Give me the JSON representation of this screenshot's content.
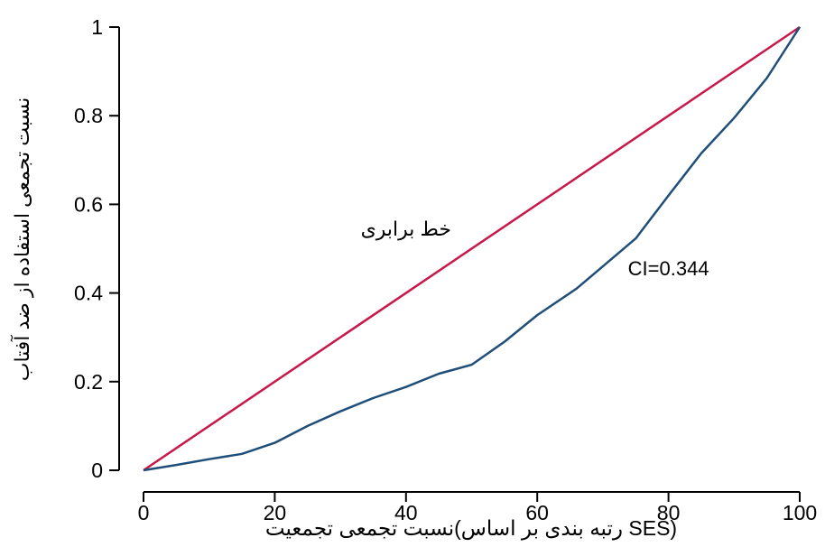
{
  "chart_data": {
    "type": "line",
    "title": "",
    "xlabel": "نسبت تجمعی تجمعیت(رتبه بندی بر اساس SES)",
    "ylabel": "نسبت تجمعی استفاده از ضد آفتاب",
    "xlim": [
      0,
      100
    ],
    "ylim": [
      0,
      1
    ],
    "xticks": [
      0,
      20,
      40,
      60,
      80,
      100
    ],
    "yticks": [
      0,
      0.2,
      0.4,
      0.6,
      0.8,
      1
    ],
    "xtick_labels": [
      "0",
      "20",
      "40",
      "60",
      "80",
      "100"
    ],
    "ytick_labels": [
      "0",
      "0.2",
      "0.4",
      "0.6",
      "0.8",
      "1"
    ],
    "grid": false,
    "series": [
      {
        "kind": "equality",
        "color": "#c8174a",
        "x": [
          0,
          100
        ],
        "y": [
          0,
          1
        ]
      },
      {
        "kind": "concentration",
        "color": "#1f4e79",
        "x": [
          0,
          5,
          10,
          15,
          20,
          25,
          30,
          35,
          40,
          45,
          50,
          55,
          60,
          66,
          70,
          75,
          80,
          85,
          90,
          95,
          100
        ],
        "y": [
          0,
          0.012,
          0.025,
          0.037,
          0.062,
          0.1,
          0.133,
          0.163,
          0.188,
          0.218,
          0.238,
          0.29,
          0.35,
          0.41,
          0.46,
          0.523,
          0.62,
          0.715,
          0.795,
          0.885,
          1
        ]
      }
    ],
    "annotations": [
      {
        "text": "خط برابری",
        "x": 40,
        "y": 0.53
      },
      {
        "text": "CI=0.344",
        "x": 80,
        "y": 0.44
      }
    ]
  }
}
